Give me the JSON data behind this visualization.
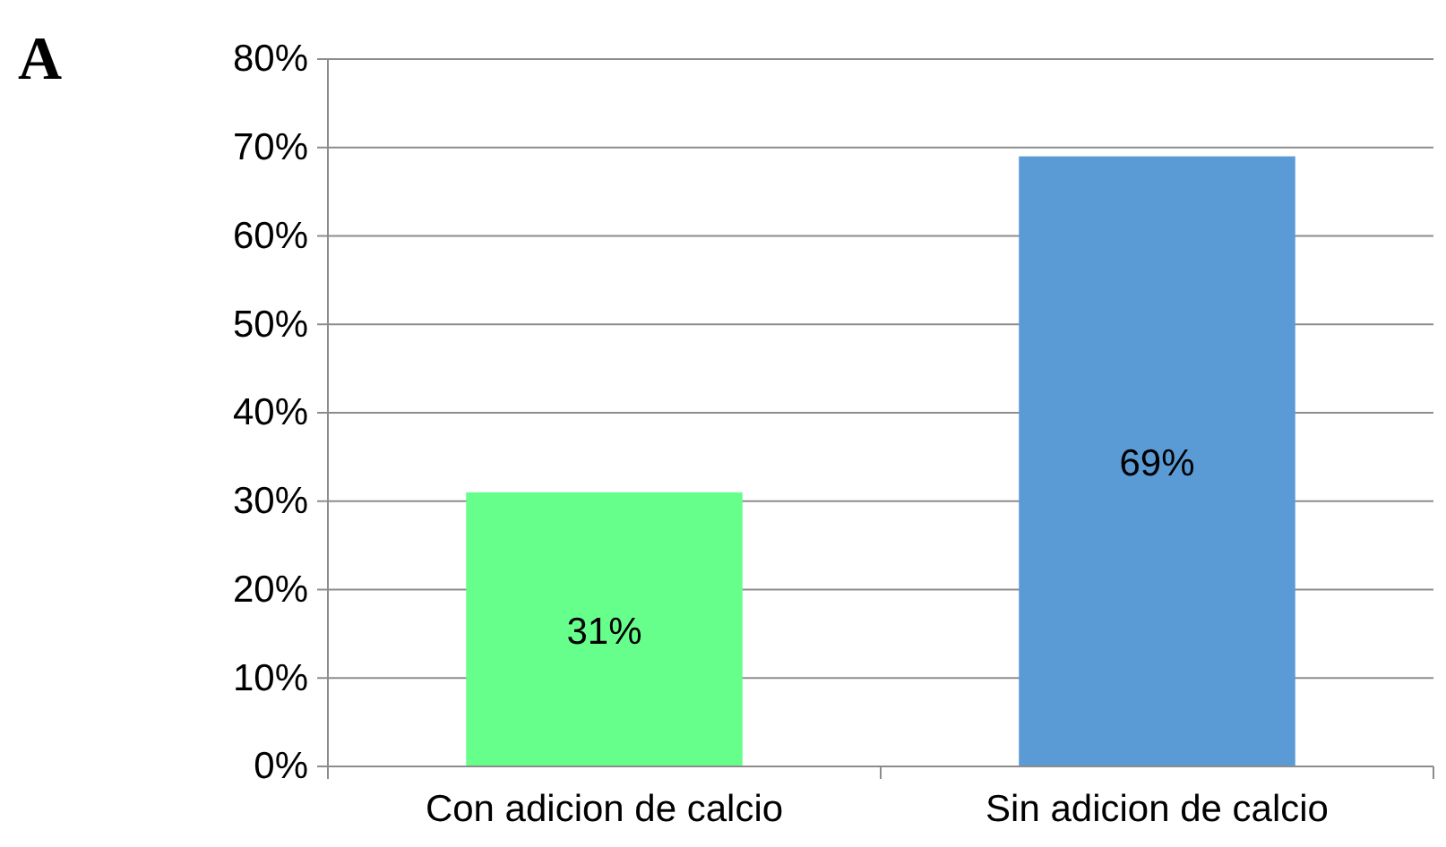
{
  "chart_data": {
    "type": "bar",
    "title": "A",
    "categories": [
      "Con adicion de calcio",
      "Sin adicion de calcio"
    ],
    "values": [
      31,
      69
    ],
    "colors": [
      "#66ff8c",
      "#5b9bd5"
    ],
    "value_labels": [
      "31%",
      "69%"
    ],
    "ylim": [
      0,
      80
    ],
    "yticks": [
      {
        "value": 0,
        "label": "0%"
      },
      {
        "value": 10,
        "label": "10%"
      },
      {
        "value": 20,
        "label": "20%"
      },
      {
        "value": 30,
        "label": "30%"
      },
      {
        "value": 40,
        "label": "40%"
      },
      {
        "value": 50,
        "label": "50%"
      },
      {
        "value": 60,
        "label": "60%"
      },
      {
        "value": 70,
        "label": "70%"
      },
      {
        "value": 80,
        "label": "80%"
      }
    ],
    "grid": "y"
  }
}
